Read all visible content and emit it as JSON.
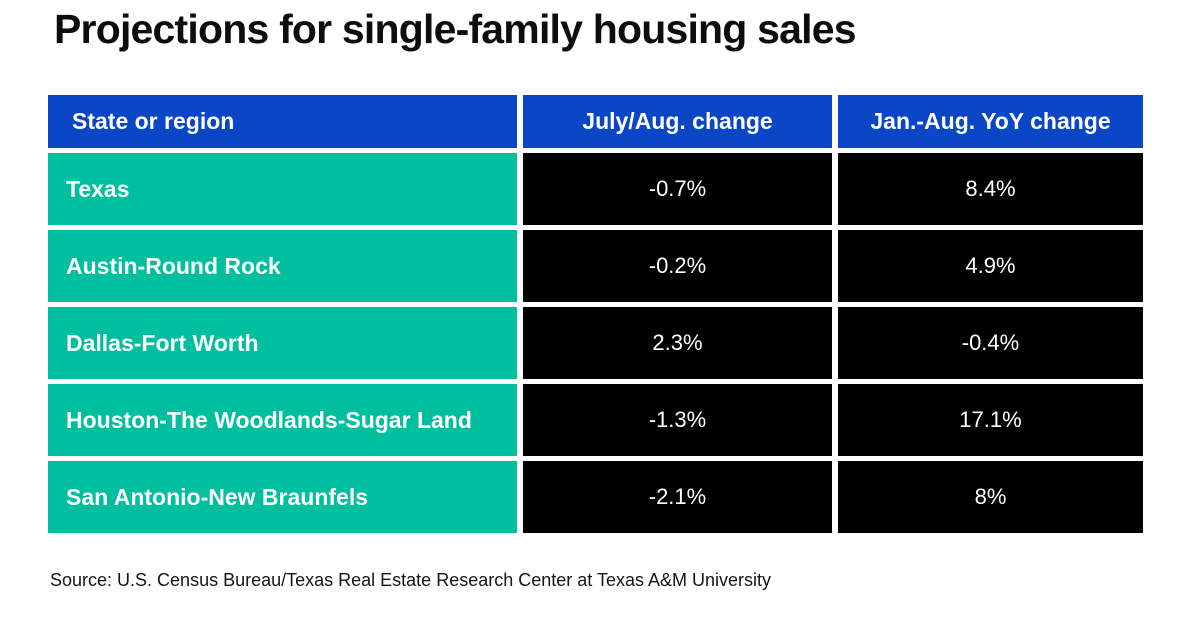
{
  "title": "Projections for single-family housing sales",
  "source": "Source: U.S. Census Bureau/Texas Real Estate Research Center at Texas A&M University",
  "colors": {
    "header_bg": "#0b46c6",
    "region_bg": "#00bf9e",
    "value_bg": "#000000",
    "text_light": "#ffffff",
    "title_text": "#0d0d0d"
  },
  "table": {
    "columns": {
      "region": "State or region",
      "july_aug": "July/Aug. change",
      "yoy": "Jan.-Aug. YoY change"
    },
    "rows": [
      {
        "region": "Texas",
        "july_aug": "-0.7%",
        "yoy": "8.4%"
      },
      {
        "region": "Austin-Round Rock",
        "july_aug": "-0.2%",
        "yoy": "4.9%"
      },
      {
        "region": "Dallas-Fort Worth",
        "july_aug": "2.3%",
        "yoy": "-0.4%"
      },
      {
        "region": "Houston-The Woodlands-Sugar Land",
        "july_aug": "-1.3%",
        "yoy": "17.1%"
      },
      {
        "region": "San Antonio-New Braunfels",
        "july_aug": "-2.1%",
        "yoy": "8%"
      }
    ]
  },
  "chart_data": {
    "type": "table",
    "title": "Projections for single-family housing sales",
    "columns": [
      "State or region",
      "July/Aug. change",
      "Jan.-Aug. YoY change"
    ],
    "rows": [
      [
        "Texas",
        -0.7,
        8.4
      ],
      [
        "Austin-Round Rock",
        -0.2,
        4.9
      ],
      [
        "Dallas-Fort Worth",
        2.3,
        -0.4
      ],
      [
        "Houston-The Woodlands-Sugar Land",
        -1.3,
        17.1
      ],
      [
        "San Antonio-New Braunfels",
        -2.1,
        8
      ]
    ],
    "units": "percent (% change)",
    "source": "Source: U.S. Census Bureau/Texas Real Estate Research Center at Texas A&M University"
  }
}
